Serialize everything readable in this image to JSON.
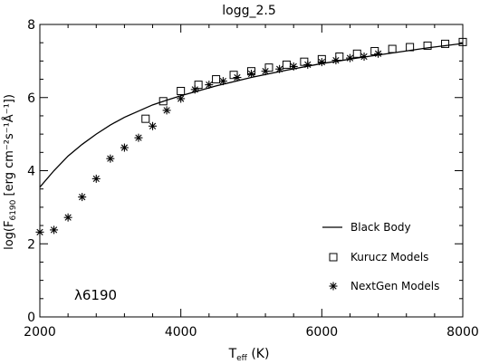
{
  "chart_data": {
    "type": "scatter",
    "title": "logg_2.5",
    "xlabel": {
      "main": "T",
      "sub": "eff",
      "unit": " (K)"
    },
    "ylabel": {
      "main": "log(F",
      "sub": "6190",
      "unit": " [erg cm⁻²s⁻¹Å⁻¹])"
    },
    "xlim": [
      2000,
      8000
    ],
    "ylim": [
      0,
      8
    ],
    "xticks": [
      "2000",
      "4000",
      "6000",
      "8000"
    ],
    "yticks": [
      "0",
      "2",
      "4",
      "6",
      "8"
    ],
    "annotation": "λ6190",
    "legend": {
      "placement": "bottom-right"
    },
    "series": [
      {
        "name": "Black Body",
        "style": "line",
        "x": [
          2000,
          2200,
          2400,
          2600,
          2800,
          3000,
          3200,
          3400,
          3600,
          3800,
          4000,
          4500,
          5000,
          5500,
          6000,
          6500,
          7000,
          7500,
          8000
        ],
        "y": [
          3.55,
          4.0,
          4.4,
          4.72,
          5.0,
          5.25,
          5.46,
          5.63,
          5.8,
          5.93,
          6.05,
          6.32,
          6.55,
          6.75,
          6.93,
          7.08,
          7.22,
          7.36,
          7.48
        ]
      },
      {
        "name": "Kurucz Models",
        "style": "square",
        "x": [
          3500,
          3750,
          4000,
          4250,
          4500,
          4750,
          5000,
          5250,
          5500,
          5750,
          6000,
          6250,
          6500,
          6750,
          7000,
          7250,
          7500,
          7750,
          8000
        ],
        "y": [
          5.42,
          5.9,
          6.18,
          6.35,
          6.5,
          6.62,
          6.72,
          6.82,
          6.9,
          6.98,
          7.05,
          7.12,
          7.2,
          7.27,
          7.33,
          7.38,
          7.42,
          7.47,
          7.52
        ]
      },
      {
        "name": "NextGen Models",
        "style": "asterisk",
        "x": [
          2000,
          2200,
          2400,
          2600,
          2800,
          3000,
          3200,
          3400,
          3600,
          3800,
          4000,
          4200,
          4400,
          4600,
          4800,
          5000,
          5200,
          5400,
          5600,
          5800,
          6000,
          6200,
          6400,
          6600,
          6800
        ],
        "y": [
          2.32,
          2.38,
          2.72,
          3.28,
          3.78,
          4.33,
          4.63,
          4.9,
          5.22,
          5.65,
          5.97,
          6.22,
          6.35,
          6.45,
          6.55,
          6.65,
          6.72,
          6.78,
          6.85,
          6.9,
          6.97,
          7.02,
          7.08,
          7.12,
          7.2
        ]
      }
    ]
  }
}
